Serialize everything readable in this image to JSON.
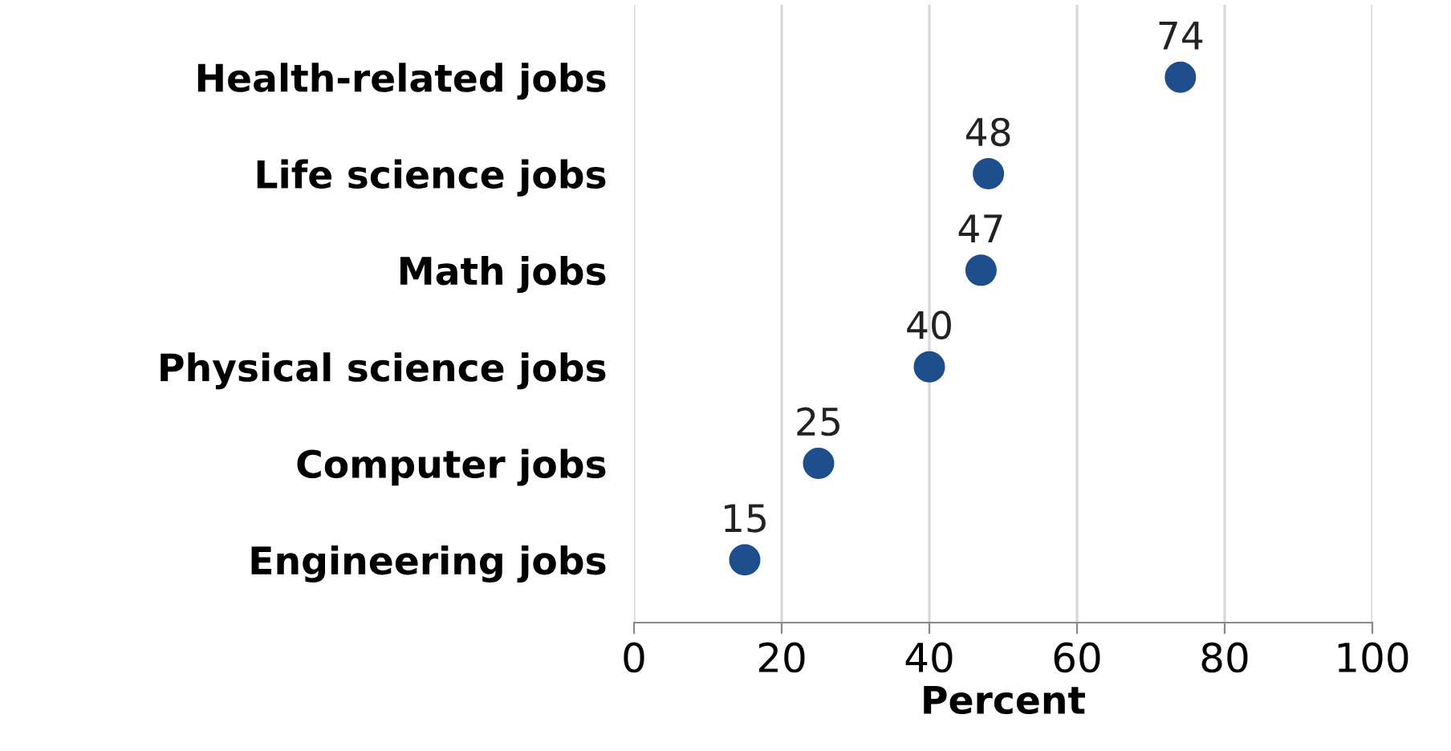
{
  "chart_data": {
    "type": "scatter",
    "orientation": "horizontal",
    "xlabel": "Percent",
    "categories": [
      "Health-related jobs",
      "Life science jobs",
      "Math jobs",
      "Physical science jobs",
      "Computer jobs",
      "Engineering jobs"
    ],
    "values": [
      74,
      48,
      47,
      40,
      25,
      15
    ],
    "color": "#1f4e8c",
    "marker": "circle",
    "xlim": [
      0,
      100
    ],
    "xticks": [
      0,
      20,
      40,
      60,
      80,
      100
    ],
    "grid": "x",
    "data_labels": true,
    "legend": false
  }
}
